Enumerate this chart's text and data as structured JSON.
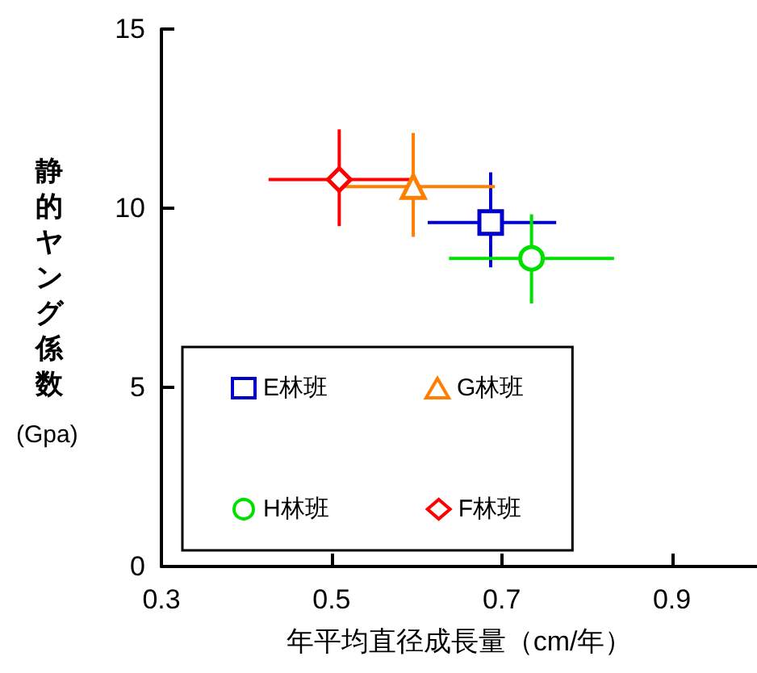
{
  "chart_data": {
    "type": "scatter",
    "xlabel": "年平均直径成長量（cm/年）",
    "ylabel": "静的ヤング係数\n(Gpa)",
    "xlim": [
      0.3,
      1.0
    ],
    "xticks": [
      0.3,
      0.5,
      0.7,
      0.9
    ],
    "ylim": [
      0,
      15
    ],
    "yticks": [
      0,
      5,
      10,
      15
    ],
    "grid": false,
    "legend": "bottom",
    "series": [
      {
        "name": "E林班",
        "color": "#0000cc",
        "marker": "square",
        "x": [
          0.687
        ],
        "values": [
          9.6
        ],
        "xerrors": [
          [
            0.613,
            0.764
          ]
        ],
        "errors": [
          [
            8.35,
            11.0
          ]
        ]
      },
      {
        "name": "G林班",
        "color": "#ff8000",
        "marker": "triangle",
        "x": [
          0.596
        ],
        "values": [
          10.6
        ],
        "xerrors": [
          [
            0.513,
            0.692
          ]
        ],
        "errors": [
          [
            9.2,
            12.1
          ]
        ]
      },
      {
        "name": "H林班",
        "color": "#00e000",
        "marker": "circle",
        "x": [
          0.735
        ],
        "values": [
          8.6
        ],
        "xerrors": [
          [
            0.638,
            0.832
          ]
        ],
        "errors": [
          [
            7.34,
            9.83
          ]
        ]
      },
      {
        "name": "F林班",
        "color": "#ff0000",
        "marker": "diamond",
        "x": [
          0.509
        ],
        "values": [
          10.8
        ],
        "xerrors": [
          [
            0.426,
            0.592
          ]
        ],
        "errors": [
          [
            9.5,
            12.2
          ]
        ]
      }
    ]
  }
}
